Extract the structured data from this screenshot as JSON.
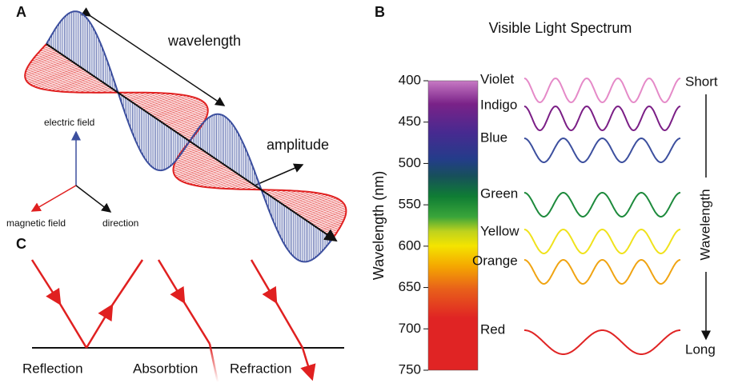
{
  "panels": {
    "a": {
      "label": "A",
      "wavelength": "wavelength",
      "amplitude": "amplitude",
      "electric_field": "electric field",
      "magnetic_field": "magnetic field",
      "direction": "direction"
    },
    "b": {
      "label": "B",
      "title": "Visible Light Spectrum",
      "axis_label": "Wavelength (nm)",
      "ylim": [
        400,
        750
      ],
      "ticks": [
        400,
        450,
        500,
        550,
        600,
        650,
        700,
        750
      ],
      "colors": [
        {
          "name": "Violet",
          "color": "#e58ac8"
        },
        {
          "name": "Indigo",
          "color": "#7b1f86"
        },
        {
          "name": "Blue",
          "color": "#3c4f9e"
        },
        {
          "name": "Green",
          "color": "#1d8a3c"
        },
        {
          "name": "Yellow",
          "color": "#f0e21c"
        },
        {
          "name": "Orange",
          "color": "#f0a412"
        },
        {
          "name": "Red",
          "color": "#e02424"
        }
      ],
      "short": "Short",
      "long": "Long",
      "arrow_label": "Wavelength"
    },
    "c": {
      "label": "C",
      "captions": [
        "Reflection",
        "Absorbtion",
        "Refraction"
      ]
    }
  }
}
